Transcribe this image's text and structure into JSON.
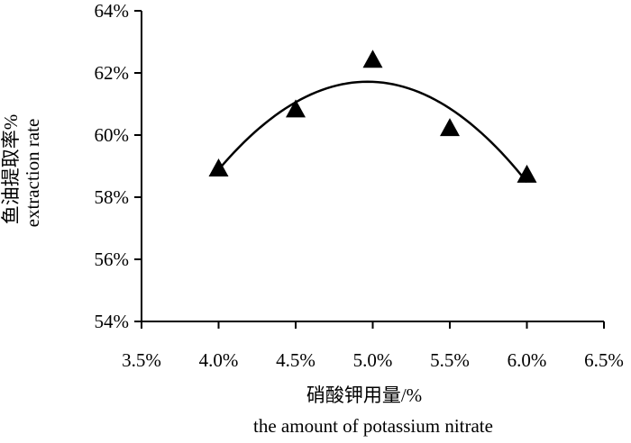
{
  "chart_data": {
    "type": "scatter",
    "title": "",
    "xlabel_zh": "硝酸钾用量/%",
    "xlabel_en": "the amount of potassium nitrate",
    "ylabel_zh": "鱼油提取率%",
    "ylabel_en": "extraction rate",
    "x_ticks": [
      "3.5%",
      "4.0%",
      "4.5%",
      "5.0%",
      "5.5%",
      "6.0%",
      "6.5%"
    ],
    "y_ticks": [
      "54%",
      "56%",
      "58%",
      "60%",
      "62%",
      "64%"
    ],
    "xlim": [
      3.5,
      6.5
    ],
    "ylim": [
      54,
      64
    ],
    "grid": false,
    "legend": "none",
    "marker": "triangle",
    "trendline": "polynomial",
    "series": [
      {
        "x": [
          4.0,
          4.5,
          5.0,
          5.5,
          6.0
        ],
        "y": [
          58.9,
          60.8,
          62.4,
          60.2,
          58.7
        ]
      }
    ],
    "color": "#000000"
  }
}
